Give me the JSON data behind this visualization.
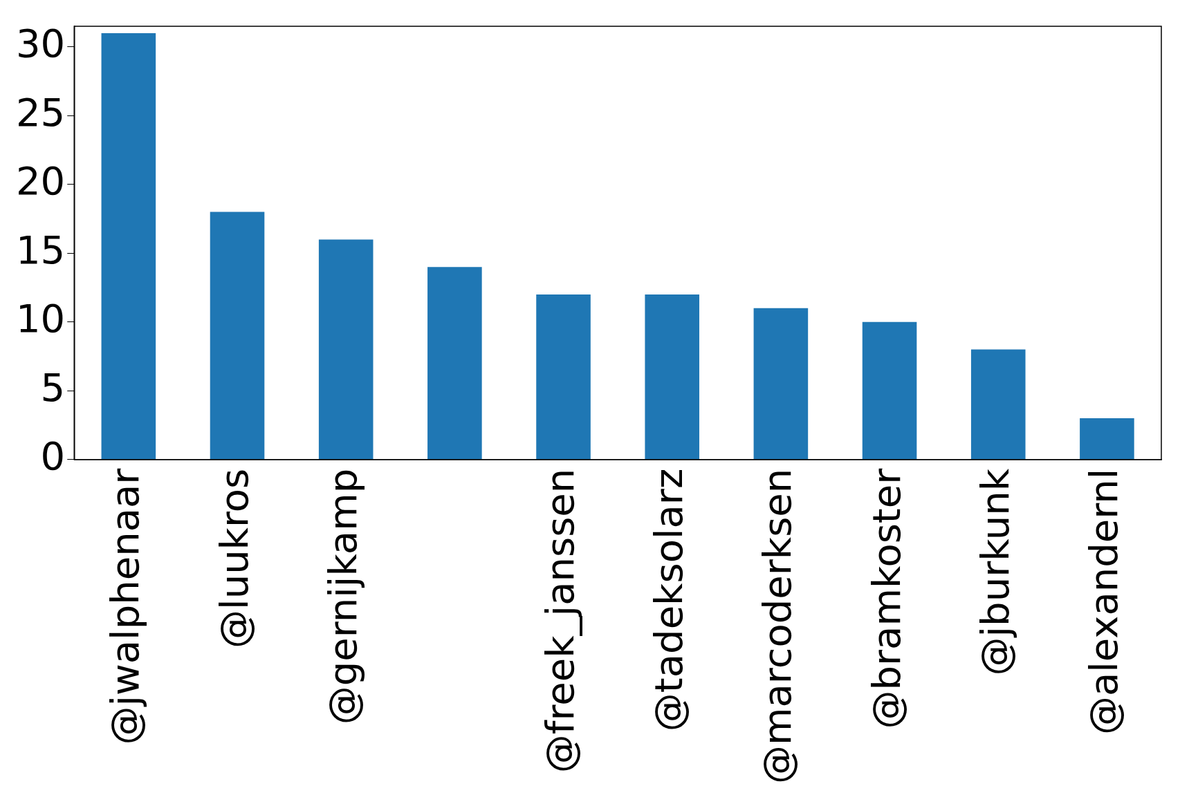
{
  "chart_data": {
    "type": "bar",
    "categories": [
      "@jwalphenaar",
      "@luukros",
      "@gernijkamp",
      null,
      "@freek_janssen",
      "@tadeksolarz",
      "@marcoderksen",
      "@bramkoster",
      "@jburkunk",
      "@alexandernl"
    ],
    "values": [
      31,
      18,
      16,
      14,
      12,
      12,
      11,
      10,
      8,
      3
    ],
    "color": "#1f77b4",
    "ylim": [
      0,
      31.5
    ],
    "yticks": [
      0,
      5,
      10,
      15,
      20,
      25,
      30
    ],
    "grid": false
  }
}
